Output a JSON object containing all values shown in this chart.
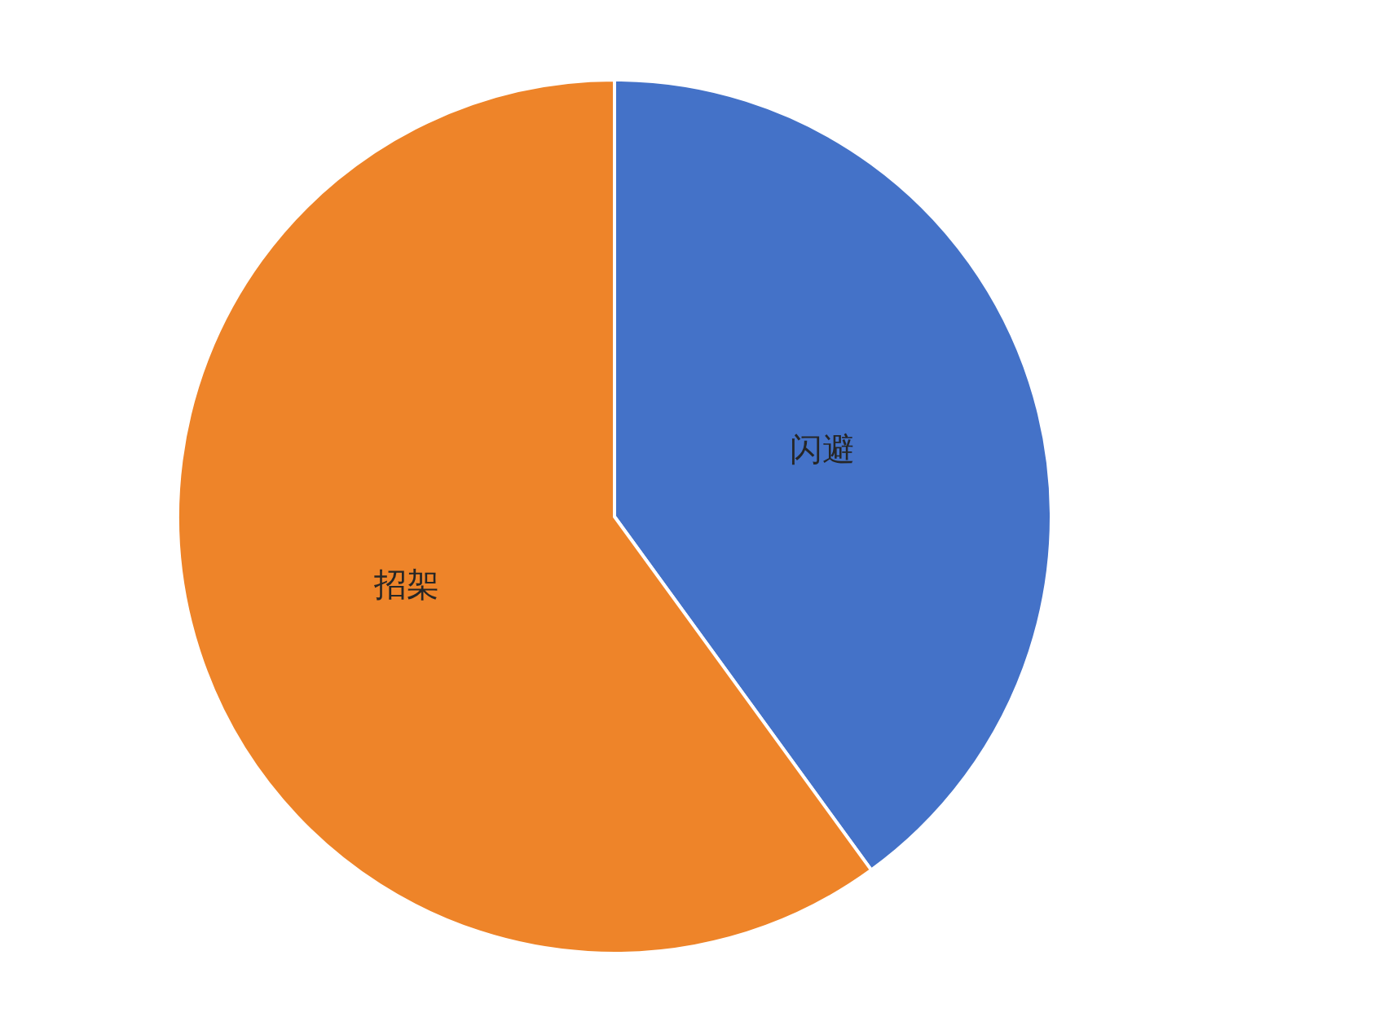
{
  "chart_data": {
    "type": "pie",
    "categories": [
      "闪避",
      "招架"
    ],
    "values": [
      40,
      60
    ],
    "colors": [
      "#4472c8",
      "#ee8429"
    ]
  }
}
